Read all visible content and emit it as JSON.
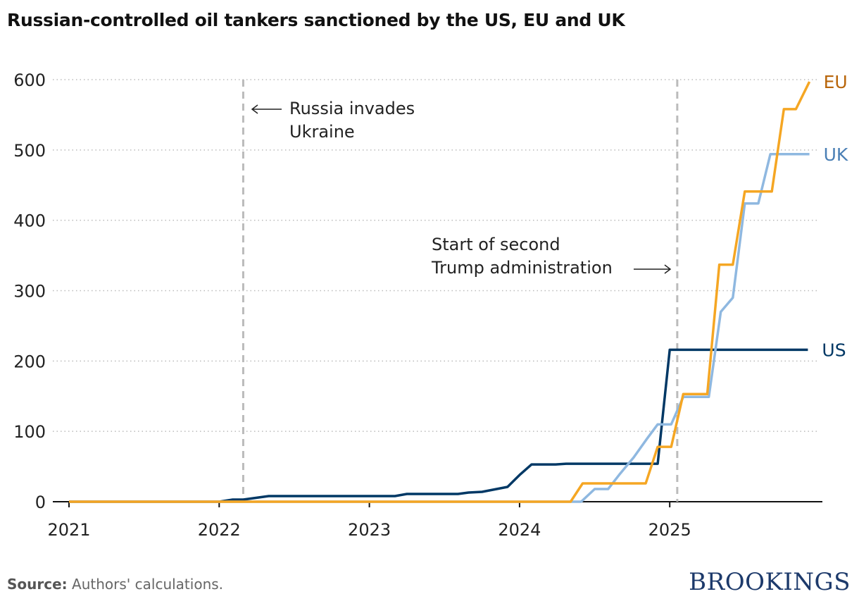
{
  "chart_data": {
    "type": "line",
    "title": "Russian-controlled oil tankers sanctioned by the US, EU and UK",
    "xlabel": "",
    "ylabel": "",
    "xlim": [
      2021,
      2026
    ],
    "ylim": [
      0,
      600
    ],
    "x_ticks": [
      "2021",
      "2022",
      "2023",
      "2024",
      "2025"
    ],
    "y_ticks": [
      0,
      100,
      200,
      300,
      400,
      500,
      600
    ],
    "grid": "horizontal dotted",
    "legend": "direct labels at line ends",
    "series": [
      {
        "name": "EU",
        "color": "#f5a623",
        "label_color": "#b8650a",
        "x": [
          2021,
          2024.34,
          2024.42,
          2024.84,
          2024.92,
          2025.01,
          2025.09,
          2025.25,
          2025.33,
          2025.42,
          2025.5,
          2025.68,
          2025.76,
          2025.84,
          2025.93
        ],
        "y": [
          0,
          0,
          26,
          26,
          78,
          78,
          153,
          153,
          337,
          337,
          441,
          441,
          558,
          558,
          597
        ]
      },
      {
        "name": "UK",
        "color": "#8fb8e0",
        "label_color": "#4a7fb5",
        "x": [
          2021,
          2024.41,
          2024.5,
          2024.59,
          2024.67,
          2024.76,
          2024.85,
          2024.92,
          2025.01,
          2025.09,
          2025.26,
          2025.34,
          2025.42,
          2025.5,
          2025.59,
          2025.67,
          2025.93
        ],
        "y": [
          0,
          0,
          18,
          18,
          40,
          63,
          90,
          110,
          110,
          149,
          149,
          270,
          290,
          424,
          424,
          494,
          494
        ]
      },
      {
        "name": "US",
        "color": "#003865",
        "label_color": "#003865",
        "x": [
          2021,
          2022.0,
          2022.09,
          2022.16,
          2022.33,
          2023.17,
          2023.25,
          2023.59,
          2023.66,
          2023.75,
          2023.92,
          2024.0,
          2024.08,
          2024.24,
          2024.31,
          2024.92,
          2025.0,
          2025.92
        ],
        "y": [
          0,
          0,
          3,
          3,
          8,
          8,
          11,
          11,
          13,
          14,
          21,
          38,
          53,
          53,
          54,
          54,
          216,
          216
        ]
      }
    ],
    "annotations": [
      {
        "x": 2022.16,
        "lines": [
          "Russia invades",
          "Ukraine"
        ],
        "arrow": "left"
      },
      {
        "x": 2025.05,
        "lines": [
          "Start of second",
          "Trump administration"
        ],
        "arrow": "right"
      }
    ]
  },
  "footer": {
    "source_label": "Source:",
    "source_text": " Authors' calculations.",
    "brand": "BROOKINGS"
  }
}
